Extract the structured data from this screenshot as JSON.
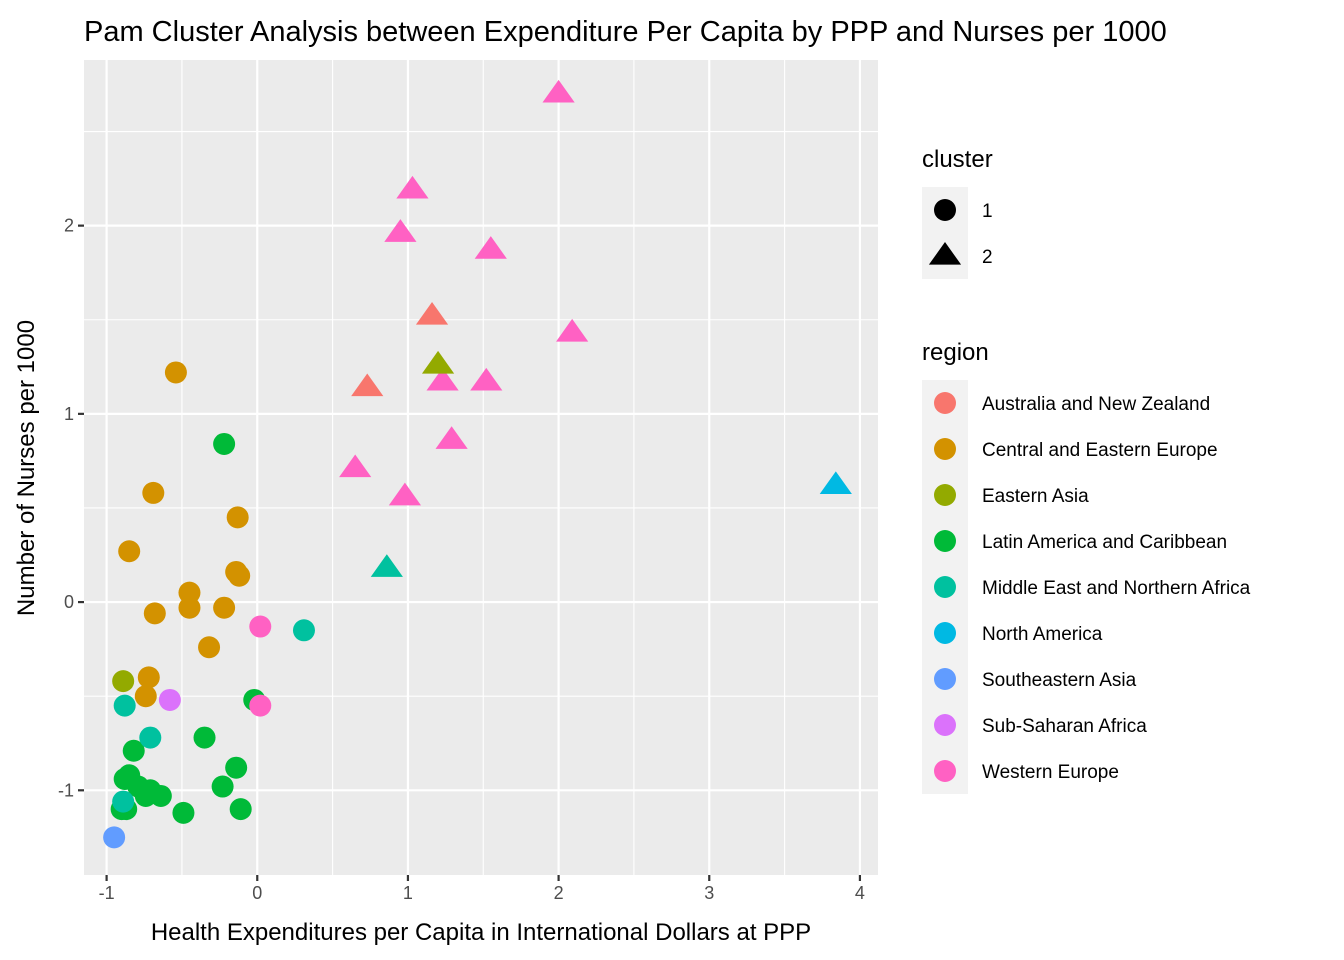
{
  "chart_data": {
    "type": "scatter",
    "title": "Pam Cluster Analysis between Expenditure Per Capita by PPP and Nurses per 1000",
    "xlabel": "Health Expenditures per Capita in International Dollars at PPP",
    "ylabel": "Number of Nurses per 1000",
    "xlim": [
      -1.15,
      4.12
    ],
    "ylim": [
      -1.45,
      2.88
    ],
    "x_ticks": [
      -1,
      0,
      1,
      2,
      3,
      4
    ],
    "y_ticks": [
      -1,
      0,
      1,
      2
    ],
    "x_tick_labels": [
      "-1",
      "0",
      "1",
      "2",
      "3",
      "4"
    ],
    "y_tick_labels": [
      "-1",
      "0",
      "1",
      "2"
    ],
    "grid": true,
    "legend_placement": "right",
    "cluster_legend": {
      "title": "cluster",
      "entries": [
        {
          "label": "1",
          "shape": "circle"
        },
        {
          "label": "2",
          "shape": "triangle"
        }
      ]
    },
    "region_legend": {
      "title": "region",
      "entries": [
        {
          "label": "Australia and New Zealand",
          "color": "#F8766D"
        },
        {
          "label": "Central and Eastern Europe",
          "color": "#D39200"
        },
        {
          "label": "Eastern Asia",
          "color": "#93AA00"
        },
        {
          "label": "Latin America and Caribbean",
          "color": "#00BA38"
        },
        {
          "label": "Middle East and Northern Africa",
          "color": "#00C19F"
        },
        {
          "label": "North America",
          "color": "#00B9E3"
        },
        {
          "label": "Southeastern Asia",
          "color": "#619CFF"
        },
        {
          "label": "Sub-Saharan Africa",
          "color": "#DB72FB"
        },
        {
          "label": "Western Europe",
          "color": "#FF61C3"
        }
      ]
    },
    "points": [
      {
        "x": 2.0,
        "y": 2.7,
        "cluster": "2",
        "region": "Western Europe"
      },
      {
        "x": 1.03,
        "y": 2.19,
        "cluster": "2",
        "region": "Western Europe"
      },
      {
        "x": 0.95,
        "y": 1.96,
        "cluster": "2",
        "region": "Western Europe"
      },
      {
        "x": 1.55,
        "y": 1.87,
        "cluster": "2",
        "region": "Western Europe"
      },
      {
        "x": 2.09,
        "y": 1.43,
        "cluster": "2",
        "region": "Western Europe"
      },
      {
        "x": 1.23,
        "y": 1.17,
        "cluster": "2",
        "region": "Western Europe"
      },
      {
        "x": 1.52,
        "y": 1.17,
        "cluster": "2",
        "region": "Western Europe"
      },
      {
        "x": 1.29,
        "y": 0.86,
        "cluster": "2",
        "region": "Western Europe"
      },
      {
        "x": 0.65,
        "y": 0.71,
        "cluster": "2",
        "region": "Western Europe"
      },
      {
        "x": 0.98,
        "y": 0.56,
        "cluster": "2",
        "region": "Western Europe"
      },
      {
        "x": 1.16,
        "y": 1.52,
        "cluster": "2",
        "region": "Australia and New Zealand"
      },
      {
        "x": 0.73,
        "y": 1.14,
        "cluster": "2",
        "region": "Australia and New Zealand"
      },
      {
        "x": 1.2,
        "y": 1.26,
        "cluster": "2",
        "region": "Eastern Asia"
      },
      {
        "x": 0.86,
        "y": 0.18,
        "cluster": "2",
        "region": "Middle East and Northern Africa"
      },
      {
        "x": 3.84,
        "y": 0.62,
        "cluster": "2",
        "region": "North America"
      },
      {
        "x": -0.54,
        "y": 1.22,
        "cluster": "1",
        "region": "Central and Eastern Europe"
      },
      {
        "x": -0.69,
        "y": 0.58,
        "cluster": "1",
        "region": "Central and Eastern Europe"
      },
      {
        "x": -0.13,
        "y": 0.45,
        "cluster": "1",
        "region": "Central and Eastern Europe"
      },
      {
        "x": -0.85,
        "y": 0.27,
        "cluster": "1",
        "region": "Central and Eastern Europe"
      },
      {
        "x": -0.14,
        "y": 0.16,
        "cluster": "1",
        "region": "Central and Eastern Europe"
      },
      {
        "x": -0.12,
        "y": 0.14,
        "cluster": "1",
        "region": "Central and Eastern Europe"
      },
      {
        "x": -0.45,
        "y": 0.05,
        "cluster": "1",
        "region": "Central and Eastern Europe"
      },
      {
        "x": -0.45,
        "y": -0.03,
        "cluster": "1",
        "region": "Central and Eastern Europe"
      },
      {
        "x": -0.22,
        "y": -0.03,
        "cluster": "1",
        "region": "Central and Eastern Europe"
      },
      {
        "x": -0.68,
        "y": -0.06,
        "cluster": "1",
        "region": "Central and Eastern Europe"
      },
      {
        "x": -0.32,
        "y": -0.24,
        "cluster": "1",
        "region": "Central and Eastern Europe"
      },
      {
        "x": -0.72,
        "y": -0.4,
        "cluster": "1",
        "region": "Central and Eastern Europe"
      },
      {
        "x": -0.74,
        "y": -0.5,
        "cluster": "1",
        "region": "Central and Eastern Europe"
      },
      {
        "x": -0.89,
        "y": -0.42,
        "cluster": "1",
        "region": "Eastern Asia"
      },
      {
        "x": -0.22,
        "y": 0.84,
        "cluster": "1",
        "region": "Latin America and Caribbean"
      },
      {
        "x": -0.02,
        "y": -0.52,
        "cluster": "1",
        "region": "Latin America and Caribbean"
      },
      {
        "x": -0.35,
        "y": -0.72,
        "cluster": "1",
        "region": "Latin America and Caribbean"
      },
      {
        "x": -0.82,
        "y": -0.79,
        "cluster": "1",
        "region": "Latin America and Caribbean"
      },
      {
        "x": -0.14,
        "y": -0.88,
        "cluster": "1",
        "region": "Latin America and Caribbean"
      },
      {
        "x": -0.85,
        "y": -0.92,
        "cluster": "1",
        "region": "Latin America and Caribbean"
      },
      {
        "x": -0.88,
        "y": -0.94,
        "cluster": "1",
        "region": "Latin America and Caribbean"
      },
      {
        "x": -0.23,
        "y": -0.98,
        "cluster": "1",
        "region": "Latin America and Caribbean"
      },
      {
        "x": -0.79,
        "y": -0.98,
        "cluster": "1",
        "region": "Latin America and Caribbean"
      },
      {
        "x": -0.71,
        "y": -1.0,
        "cluster": "1",
        "region": "Latin America and Caribbean"
      },
      {
        "x": -0.74,
        "y": -1.03,
        "cluster": "1",
        "region": "Latin America and Caribbean"
      },
      {
        "x": -0.64,
        "y": -1.03,
        "cluster": "1",
        "region": "Latin America and Caribbean"
      },
      {
        "x": -0.11,
        "y": -1.1,
        "cluster": "1",
        "region": "Latin America and Caribbean"
      },
      {
        "x": -0.9,
        "y": -1.1,
        "cluster": "1",
        "region": "Latin America and Caribbean"
      },
      {
        "x": -0.87,
        "y": -1.1,
        "cluster": "1",
        "region": "Latin America and Caribbean"
      },
      {
        "x": -0.49,
        "y": -1.12,
        "cluster": "1",
        "region": "Latin America and Caribbean"
      },
      {
        "x": 0.31,
        "y": -0.15,
        "cluster": "1",
        "region": "Middle East and Northern Africa"
      },
      {
        "x": -0.88,
        "y": -0.55,
        "cluster": "1",
        "region": "Middle East and Northern Africa"
      },
      {
        "x": -0.71,
        "y": -0.72,
        "cluster": "1",
        "region": "Middle East and Northern Africa"
      },
      {
        "x": -0.89,
        "y": -1.06,
        "cluster": "1",
        "region": "Middle East and Northern Africa"
      },
      {
        "x": -0.95,
        "y": -1.25,
        "cluster": "1",
        "region": "Southeastern Asia"
      },
      {
        "x": -0.58,
        "y": -0.52,
        "cluster": "1",
        "region": "Sub-Saharan Africa"
      },
      {
        "x": 0.02,
        "y": -0.13,
        "cluster": "1",
        "region": "Western Europe"
      },
      {
        "x": 0.02,
        "y": -0.55,
        "cluster": "1",
        "region": "Western Europe"
      }
    ]
  }
}
